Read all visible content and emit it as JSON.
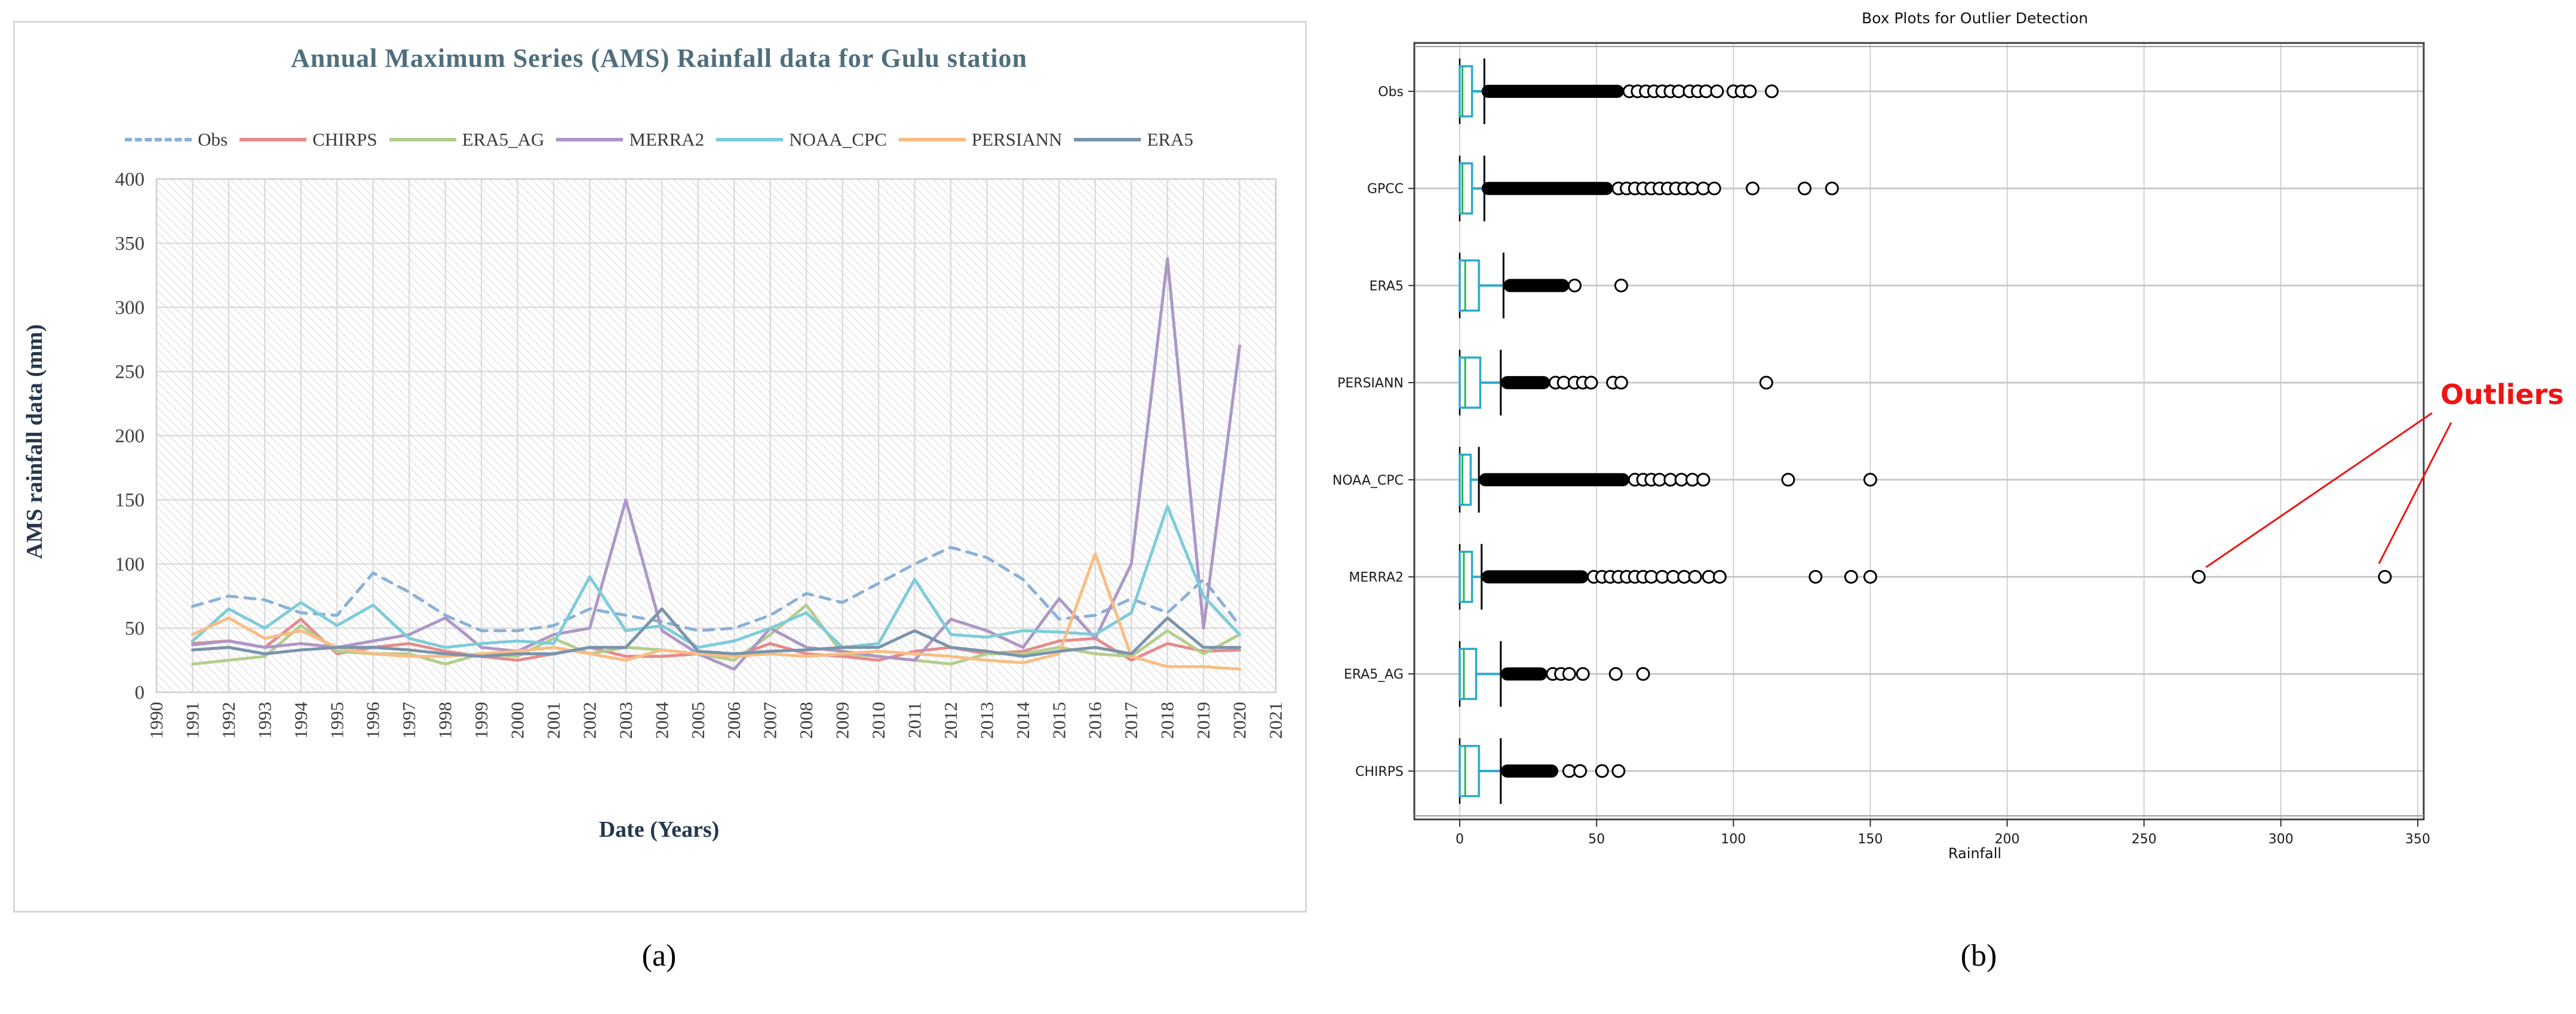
{
  "figure": {
    "caption_a": "(a)",
    "caption_b": "(b)"
  },
  "chart_data": [
    {
      "type": "line",
      "title": "Annual Maximum Series (AMS) Rainfall data for Gulu station",
      "xlabel": "Date (Years)",
      "ylabel": "AMS rainfall data (mm)",
      "ylim": [
        0,
        400
      ],
      "ytick_step": 50,
      "x_axis_ticks": [
        1990,
        1991,
        1992,
        1993,
        1994,
        1995,
        1996,
        1997,
        1998,
        1999,
        2000,
        2001,
        2002,
        2003,
        2004,
        2005,
        2006,
        2007,
        2008,
        2009,
        2010,
        2011,
        2012,
        2013,
        2014,
        2015,
        2016,
        2017,
        2018,
        2019,
        2020,
        2021
      ],
      "x": [
        1991,
        1992,
        1993,
        1994,
        1995,
        1996,
        1997,
        1998,
        1999,
        2000,
        2001,
        2002,
        2003,
        2004,
        2005,
        2006,
        2007,
        2008,
        2009,
        2010,
        2011,
        2012,
        2013,
        2014,
        2015,
        2016,
        2017,
        2018,
        2019,
        2020
      ],
      "grid": true,
      "background": "diagonal-hatch",
      "legend_position": "top",
      "series": [
        {
          "name": "Obs",
          "color": "#8ab0d6",
          "dash": true,
          "values": [
            67,
            75,
            72,
            62,
            60,
            93,
            78,
            60,
            48,
            48,
            52,
            65,
            60,
            55,
            48,
            50,
            60,
            77,
            70,
            85,
            100,
            113,
            105,
            88,
            57,
            60,
            73,
            62,
            88,
            52
          ]
        },
        {
          "name": "CHIRPS",
          "color": "#e58b8d",
          "dash": false,
          "values": [
            38,
            40,
            35,
            57,
            30,
            35,
            38,
            32,
            28,
            25,
            30,
            35,
            28,
            28,
            30,
            28,
            38,
            30,
            28,
            25,
            32,
            35,
            30,
            32,
            40,
            42,
            25,
            38,
            32,
            33
          ]
        },
        {
          "name": "ERA5_AG",
          "color": "#b4cd8d",
          "dash": false,
          "values": [
            22,
            25,
            28,
            52,
            32,
            30,
            30,
            22,
            30,
            28,
            42,
            30,
            35,
            33,
            30,
            25,
            45,
            68,
            30,
            28,
            25,
            22,
            30,
            30,
            35,
            30,
            28,
            48,
            30,
            45
          ]
        },
        {
          "name": "MERRA2",
          "color": "#ad97c7",
          "dash": false,
          "values": [
            37,
            40,
            35,
            38,
            35,
            40,
            45,
            58,
            35,
            32,
            45,
            50,
            150,
            48,
            30,
            18,
            50,
            35,
            32,
            28,
            25,
            57,
            48,
            35,
            73,
            42,
            100,
            338,
            50,
            270
          ]
        },
        {
          "name": "NOAA_CPC",
          "color": "#7dccd9",
          "dash": false,
          "values": [
            40,
            65,
            50,
            70,
            52,
            68,
            42,
            35,
            38,
            40,
            38,
            90,
            48,
            52,
            35,
            40,
            50,
            62,
            35,
            38,
            88,
            45,
            43,
            48,
            47,
            45,
            62,
            145,
            75,
            45
          ]
        },
        {
          "name": "PERSIANN",
          "color": "#f9bd84",
          "dash": false,
          "values": [
            45,
            58,
            42,
            48,
            35,
            30,
            28,
            28,
            30,
            32,
            35,
            30,
            25,
            33,
            30,
            28,
            30,
            28,
            30,
            32,
            30,
            28,
            25,
            23,
            30,
            108,
            28,
            20,
            20,
            18
          ]
        },
        {
          "name": "ERA5",
          "color": "#7b93ab",
          "dash": false,
          "values": [
            33,
            35,
            30,
            33,
            35,
            35,
            33,
            30,
            28,
            30,
            30,
            35,
            35,
            65,
            32,
            30,
            32,
            33,
            35,
            35,
            48,
            35,
            32,
            28,
            32,
            35,
            30,
            58,
            35,
            35
          ]
        }
      ]
    },
    {
      "type": "box",
      "title": "Box Plots for Outlier Detection",
      "xlabel": "Rainfall",
      "xlim": [
        0,
        350
      ],
      "xticks": [
        0,
        50,
        100,
        150,
        200,
        250,
        300,
        350
      ],
      "orientation": "horizontal",
      "box_color": "#2aa9cc",
      "median_color": "#2eb34d",
      "outlier_marker": "open-circle",
      "categories": [
        {
          "name": "Obs",
          "box": [
            0,
            4.5
          ],
          "median": 1,
          "whisker_high": 9,
          "dense_outliers": [
            8,
            60
          ],
          "outliers": [
            62,
            65,
            68,
            71,
            74,
            77,
            80,
            84,
            87,
            90,
            94,
            100,
            103,
            106,
            114
          ]
        },
        {
          "name": "GPCC",
          "box": [
            0,
            4.5
          ],
          "median": 1,
          "whisker_high": 9,
          "dense_outliers": [
            8,
            56
          ],
          "outliers": [
            58,
            61,
            64,
            67,
            70,
            73,
            76,
            79,
            82,
            85,
            89,
            93,
            107,
            126,
            136
          ]
        },
        {
          "name": "ERA5",
          "box": [
            0,
            7
          ],
          "median": 2,
          "whisker_high": 16,
          "dense_outliers": [
            16,
            40
          ],
          "outliers": [
            42,
            59
          ]
        },
        {
          "name": "PERSIANN",
          "box": [
            0,
            7.5
          ],
          "median": 2,
          "whisker_high": 15,
          "dense_outliers": [
            15,
            33
          ],
          "outliers": [
            35,
            38,
            42,
            45,
            48,
            56,
            59,
            112
          ]
        },
        {
          "name": "NOAA_CPC",
          "box": [
            0,
            4
          ],
          "median": 1,
          "whisker_high": 7,
          "dense_outliers": [
            7,
            62
          ],
          "outliers": [
            64,
            67,
            70,
            73,
            77,
            81,
            85,
            89,
            120,
            150
          ]
        },
        {
          "name": "MERRA2",
          "box": [
            0,
            4.5
          ],
          "median": 1.5,
          "whisker_high": 8,
          "dense_outliers": [
            8,
            47
          ],
          "outliers": [
            49,
            52,
            55,
            58,
            61,
            64,
            67,
            70,
            74,
            78,
            82,
            86,
            91,
            95,
            130,
            143,
            150,
            270,
            338
          ]
        },
        {
          "name": "ERA5_AG",
          "box": [
            0,
            6
          ],
          "median": 1.5,
          "whisker_high": 15,
          "dense_outliers": [
            15,
            32
          ],
          "outliers": [
            34,
            37,
            40,
            45,
            57,
            67
          ]
        },
        {
          "name": "CHIRPS",
          "box": [
            0,
            7
          ],
          "median": 2,
          "whisker_high": 15,
          "dense_outliers": [
            15,
            36
          ],
          "outliers": [
            40,
            44,
            52,
            58
          ]
        }
      ],
      "annotation": {
        "text": "Outliers",
        "color": "#ee1414",
        "points_to": {
          "category": "MERRA2",
          "values": [
            270,
            338
          ]
        }
      }
    }
  ]
}
